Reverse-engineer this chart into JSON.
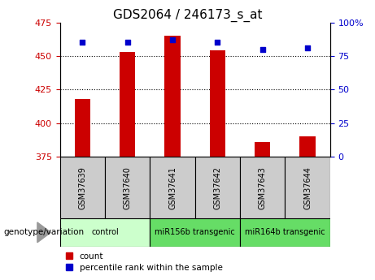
{
  "title": "GDS2064 / 246173_s_at",
  "samples": [
    "GSM37639",
    "GSM37640",
    "GSM37641",
    "GSM37642",
    "GSM37643",
    "GSM37644"
  ],
  "counts": [
    418,
    453,
    465,
    454,
    386,
    390
  ],
  "percentiles": [
    85,
    85,
    87,
    85,
    80,
    81
  ],
  "ylim_left": [
    375,
    475
  ],
  "ylim_right": [
    0,
    100
  ],
  "yticks_left": [
    375,
    400,
    425,
    450,
    475
  ],
  "yticks_right": [
    0,
    25,
    50,
    75,
    100
  ],
  "ytick_labels_right": [
    "0",
    "25",
    "50",
    "75",
    "100%"
  ],
  "bar_color": "#cc0000",
  "dot_color": "#0000cc",
  "group_ranges": [
    [
      -0.5,
      1.5,
      "control",
      "#ccffcc"
    ],
    [
      1.5,
      3.5,
      "miR156b transgenic",
      "#66dd66"
    ],
    [
      3.5,
      5.5,
      "miR164b transgenic",
      "#66dd66"
    ]
  ],
  "sample_box_color": "#cccccc",
  "grid_color": "#000000",
  "background_color": "#ffffff",
  "title_fontsize": 11,
  "axis_label_color_left": "#cc0000",
  "axis_label_color_right": "#0000cc",
  "legend_items": [
    "count",
    "percentile rank within the sample"
  ],
  "genotype_label": "genotype/variation",
  "dotted_gridlines": [
    400,
    425,
    450
  ]
}
